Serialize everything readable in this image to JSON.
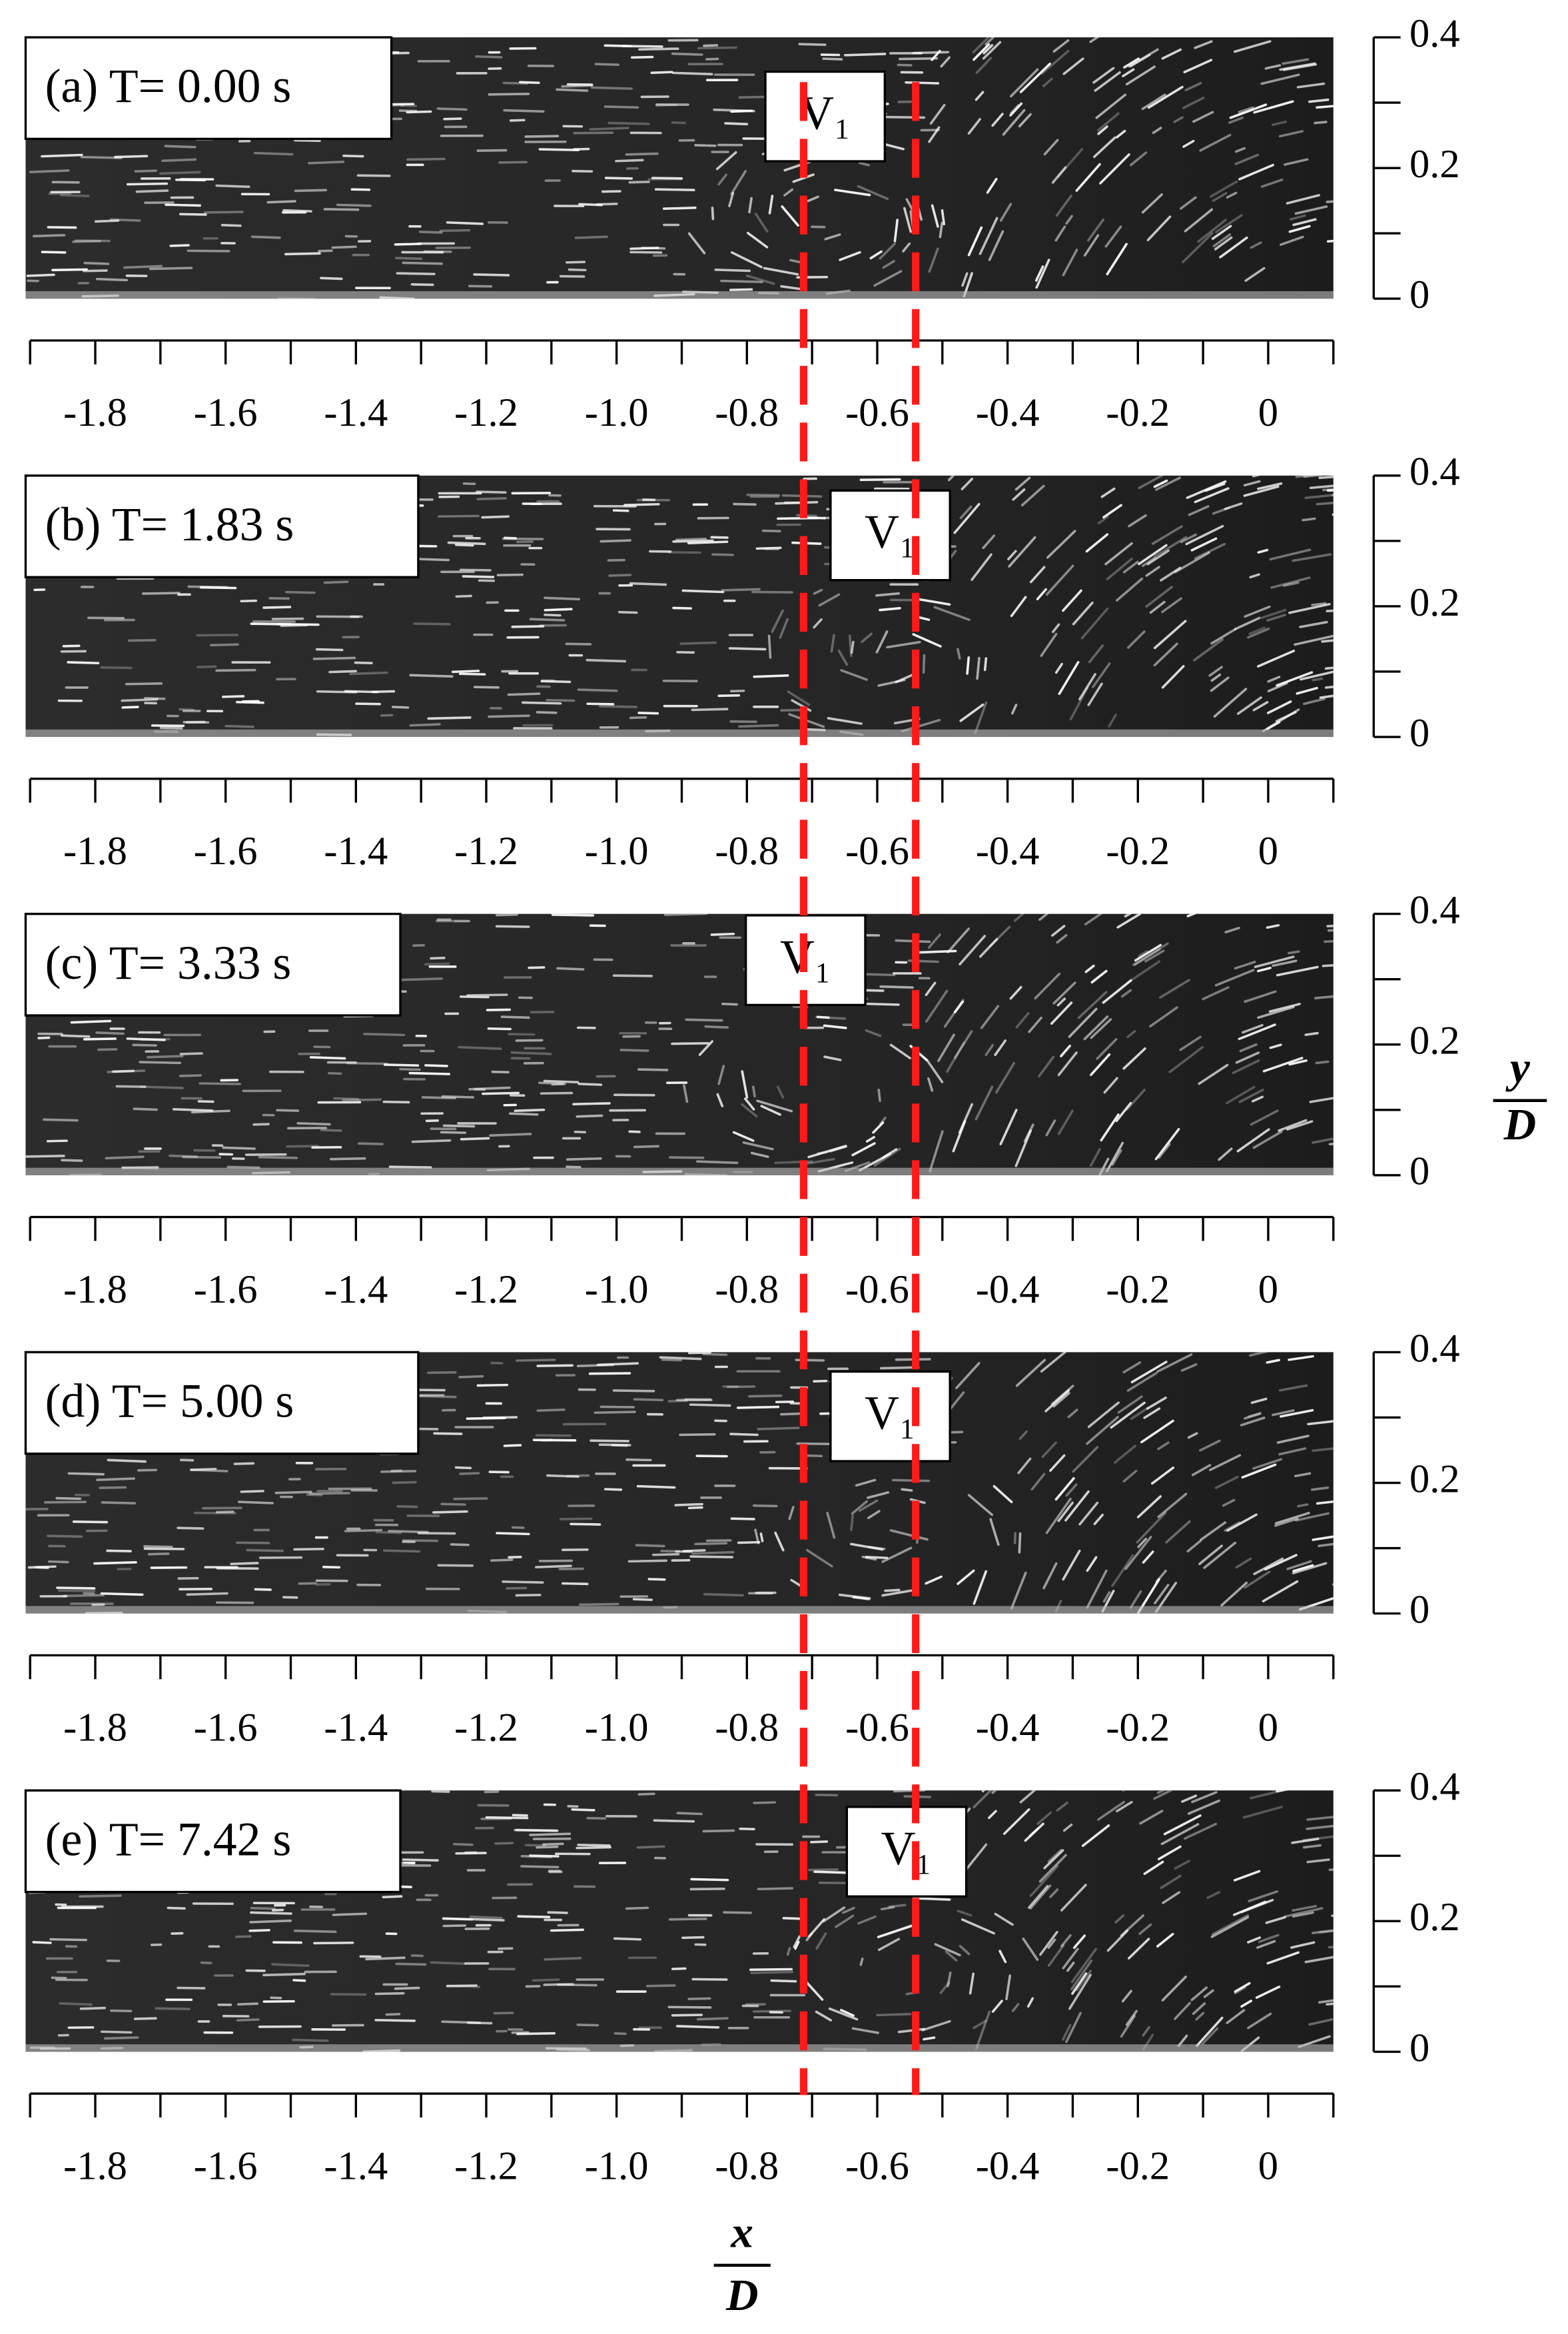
{
  "chart_data": [
    {
      "type": "image",
      "title": "(a) T= 0.00 s",
      "annotation": {
        "text": "V₁",
        "x": -0.68
      },
      "xlim": [
        -1.9,
        0.1
      ],
      "xticks": [
        -1.8,
        -1.6,
        -1.4,
        -1.2,
        {
          "value": -1,
          "label": "-1.0"
        },
        -0.8,
        -0.6,
        -0.4,
        -0.2,
        0
      ],
      "xminorticks": [
        -1.9,
        -1.7,
        -1.5,
        -1.3,
        -1.1,
        -0.9,
        -0.7,
        -0.5,
        -0.3,
        -0.1,
        0.1
      ],
      "ylim": [
        0,
        0.4
      ],
      "yticks": [
        0,
        0.2,
        0.4
      ],
      "yminorticks": [
        0.1,
        0.3
      ]
    },
    {
      "type": "image",
      "title": "(b) T= 1.83 s",
      "annotation": {
        "text": "V₁",
        "x": -0.58
      },
      "xlim": [
        -1.9,
        0.1
      ],
      "xticks": [
        -1.8,
        -1.6,
        -1.4,
        -1.2,
        {
          "value": -1,
          "label": "-1.0"
        },
        -0.8,
        -0.6,
        -0.4,
        -0.2,
        0
      ],
      "xminorticks": [
        -1.9,
        -1.7,
        -1.5,
        -1.3,
        -1.1,
        -0.9,
        -0.7,
        -0.5,
        -0.3,
        -0.1,
        0.1
      ],
      "ylim": [
        0,
        0.4
      ],
      "yticks": [
        0,
        0.2,
        0.4
      ],
      "yminorticks": [
        0.1,
        0.3
      ]
    },
    {
      "type": "image",
      "title": "(c) T= 3.33 s",
      "annotation": {
        "text": "V₁",
        "x": -0.71
      },
      "xlim": [
        -1.9,
        0.1
      ],
      "xticks": [
        -1.8,
        -1.6,
        -1.4,
        -1.2,
        {
          "value": -1,
          "label": "-1.0"
        },
        -0.8,
        -0.6,
        -0.4,
        -0.2,
        0
      ],
      "xminorticks": [
        -1.9,
        -1.7,
        -1.5,
        -1.3,
        -1.1,
        -0.9,
        -0.7,
        -0.5,
        -0.3,
        -0.1,
        0.1
      ],
      "ylim": [
        0,
        0.4
      ],
      "yticks": [
        0,
        0.2,
        0.4
      ],
      "yminorticks": [
        0.1,
        0.3
      ]
    },
    {
      "type": "image",
      "title": "(d) T= 5.00 s",
      "annotation": {
        "text": "V₁",
        "x": -0.58
      },
      "xlim": [
        -1.9,
        0.1
      ],
      "xticks": [
        -1.8,
        -1.6,
        -1.4,
        -1.2,
        {
          "value": -1,
          "label": "-1.0"
        },
        -0.8,
        -0.6,
        -0.4,
        -0.2,
        0
      ],
      "xminorticks": [
        -1.9,
        -1.7,
        -1.5,
        -1.3,
        -1.1,
        -0.9,
        -0.7,
        -0.5,
        -0.3,
        -0.1,
        0.1
      ],
      "ylim": [
        0,
        0.4
      ],
      "yticks": [
        0,
        0.2,
        0.4
      ],
      "yminorticks": [
        0.1,
        0.3
      ]
    },
    {
      "type": "image",
      "title": "(e) T= 7.42 s",
      "annotation": {
        "text": "V₁",
        "x": -0.555
      },
      "xlim": [
        -1.9,
        0.1
      ],
      "xticks": [
        -1.8,
        -1.6,
        -1.4,
        -1.2,
        {
          "value": -1,
          "label": "-1.0"
        },
        -0.8,
        -0.6,
        -0.4,
        -0.2,
        0
      ],
      "xminorticks": [
        -1.9,
        -1.7,
        -1.5,
        -1.3,
        -1.1,
        -0.9,
        -0.7,
        -0.5,
        -0.3,
        -0.1,
        0.1
      ],
      "ylim": [
        0,
        0.4
      ],
      "yticks": [
        0,
        0.2,
        0.4
      ],
      "yminorticks": [
        0.1,
        0.3
      ]
    }
  ],
  "reference_lines": {
    "values": [
      -0.713,
      -0.541
    ],
    "color": "#ff1a1a"
  },
  "ylabel": {
    "numerator": "y",
    "denominator": "D"
  },
  "xlabel": {
    "numerator": "x",
    "denominator": "D"
  }
}
